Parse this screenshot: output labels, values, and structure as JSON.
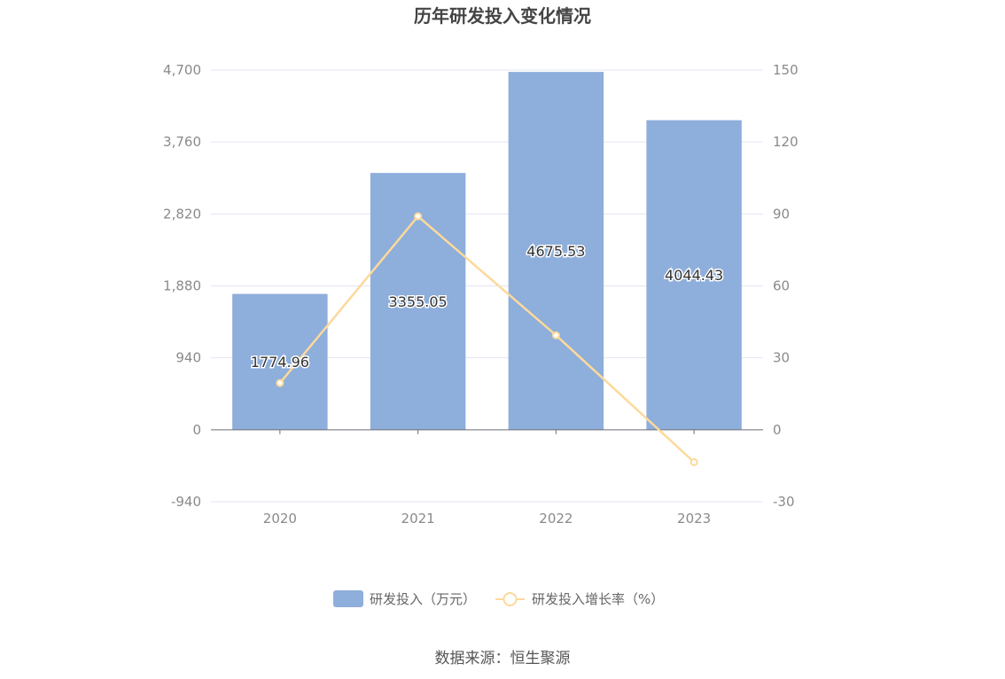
{
  "chart_data": {
    "type": "bar",
    "title": "历年研发投入变化情况",
    "categories": [
      "2020",
      "2021",
      "2022",
      "2023"
    ],
    "series": [
      {
        "name": "研发投入（万元）",
        "type": "bar",
        "axis": "left",
        "color": "#8eaedb",
        "values": [
          1774.96,
          3355.05,
          4675.53,
          4044.43
        ],
        "labels": [
          "1774.96",
          "3355.05",
          "4675.53",
          "4044.43"
        ]
      },
      {
        "name": "研发投入增长率（%）",
        "type": "line",
        "axis": "right",
        "color": "#fcd99b",
        "values": [
          19.5,
          89.0,
          39.4,
          -13.5
        ]
      }
    ],
    "y_left": {
      "min": -940,
      "max": 4700,
      "ticks": [
        -940,
        0,
        940,
        1880,
        2820,
        3760,
        4700
      ],
      "tick_labels": [
        "-940",
        "0",
        "940",
        "1,880",
        "2,820",
        "3,760",
        "4,700"
      ]
    },
    "y_right": {
      "min": -30,
      "max": 150,
      "ticks": [
        -30,
        0,
        30,
        60,
        90,
        120,
        150
      ],
      "tick_labels": [
        "-30",
        "0",
        "30",
        "60",
        "90",
        "120",
        "150"
      ]
    },
    "grid": true,
    "legend_position": "bottom-center"
  },
  "footer": {
    "source": "数据来源：恒生聚源"
  }
}
